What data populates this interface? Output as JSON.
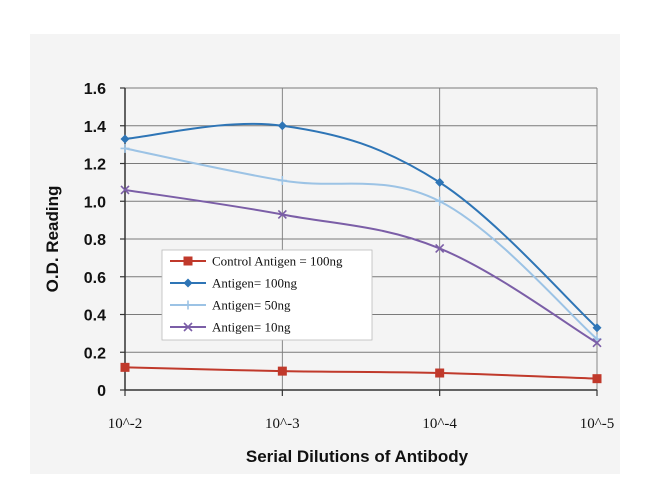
{
  "chart_data": {
    "type": "line",
    "title": "",
    "xlabel": "Serial Dilutions of Antibody",
    "ylabel": "O.D. Reading",
    "categories": [
      "10^-2",
      "10^-3",
      "10^-4",
      "10^-5"
    ],
    "y_ticks": [
      "0",
      "0.2",
      "0.4",
      "0.6",
      "0.8",
      "1.0",
      "1.2",
      "1.4",
      "1.6"
    ],
    "ylim": [
      0,
      1.6
    ],
    "grid": true,
    "legend_position": "center-left",
    "series": [
      {
        "name": "Control Antigen = 100ng",
        "color": "#c0392b",
        "marker": "square",
        "values": [
          0.12,
          0.1,
          0.09,
          0.06
        ]
      },
      {
        "name": "Antigen= 100ng",
        "color": "#2e75b6",
        "marker": "diamond",
        "values": [
          1.33,
          1.4,
          1.1,
          0.33
        ]
      },
      {
        "name": "Antigen= 50ng",
        "color": "#9cc3e5",
        "marker": "plus",
        "values": [
          1.28,
          1.11,
          1.0,
          0.27
        ]
      },
      {
        "name": "Antigen= 10ng",
        "color": "#7b5ea7",
        "marker": "x",
        "values": [
          1.06,
          0.93,
          0.75,
          0.25
        ]
      }
    ]
  }
}
